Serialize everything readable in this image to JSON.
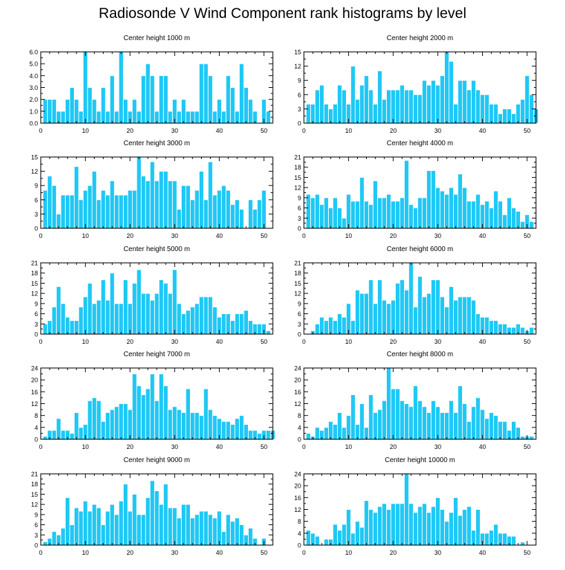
{
  "title": "Radiosonde V Wind Component rank histograms by level",
  "colors": {
    "bar": "#1ec8f5",
    "bar_edge": "#ffffff",
    "axis": "#000000"
  },
  "chart_data": [
    {
      "type": "bar",
      "title": "Center height 1000 m",
      "xlim": [
        0,
        52
      ],
      "ylim": [
        0,
        6
      ],
      "xticks": [
        0,
        10,
        20,
        30,
        40,
        50
      ],
      "yticks": [
        "0.0",
        "1.0",
        "2.0",
        "3.0",
        "4.0",
        "5.0",
        "6.0"
      ],
      "values": [
        2,
        2,
        2,
        1,
        1,
        2,
        3,
        2,
        1,
        6,
        3,
        2,
        1,
        3,
        1,
        4,
        1,
        6,
        2,
        1,
        2,
        1,
        4,
        5,
        4,
        1,
        4,
        4,
        1,
        2,
        1,
        2,
        1,
        1,
        1,
        5,
        5,
        4,
        1,
        2,
        1,
        4,
        3,
        1,
        5,
        3,
        2,
        1,
        0,
        2,
        1
      ]
    },
    {
      "type": "bar",
      "title": "Center height 2000 m",
      "xlim": [
        0,
        52
      ],
      "ylim": [
        0,
        15
      ],
      "xticks": [
        0,
        10,
        20,
        30,
        40,
        50
      ],
      "yticks": [
        "0",
        "3",
        "6",
        "9",
        "12",
        "15"
      ],
      "values": [
        4,
        4,
        7,
        8,
        4,
        3,
        4,
        8,
        7,
        4,
        12,
        5,
        8,
        10,
        7,
        4,
        11,
        5,
        7,
        7,
        7,
        8,
        7,
        7,
        6,
        6,
        9,
        8,
        9,
        8,
        10,
        15,
        13,
        4,
        9,
        9,
        7,
        9,
        7,
        6,
        6,
        4,
        4,
        2,
        3,
        3,
        2,
        4,
        5,
        10,
        6,
        3
      ]
    },
    {
      "type": "bar",
      "title": "Center height 3000 m",
      "xlim": [
        0,
        52
      ],
      "ylim": [
        0,
        15
      ],
      "xticks": [
        0,
        10,
        20,
        30,
        40,
        50
      ],
      "yticks": [
        "0",
        "3",
        "6",
        "9",
        "12",
        "15"
      ],
      "values": [
        8,
        11,
        9,
        3,
        7,
        7,
        7,
        13,
        6,
        8,
        9,
        12,
        6,
        8,
        7,
        10,
        7,
        7,
        7,
        8,
        8,
        15,
        11,
        10,
        14,
        10,
        12,
        12,
        10,
        10,
        4,
        9,
        9,
        6,
        8,
        12,
        6,
        14,
        7,
        8,
        9,
        8,
        5,
        6,
        4,
        0,
        6,
        4,
        6,
        8
      ]
    },
    {
      "type": "bar",
      "title": "Center height 4000 m",
      "xlim": [
        0,
        52
      ],
      "ylim": [
        0,
        21
      ],
      "xticks": [
        0,
        10,
        20,
        30,
        40,
        50
      ],
      "yticks": [
        "0",
        "3",
        "6",
        "9",
        "12",
        "15",
        "18",
        "21"
      ],
      "values": [
        10,
        9,
        10,
        7,
        9,
        6,
        9,
        6,
        3,
        10,
        8,
        8,
        15,
        8,
        7,
        14,
        9,
        9,
        10,
        8,
        8,
        9,
        20,
        7,
        6,
        9,
        9,
        17,
        17,
        12,
        11,
        10,
        12,
        10,
        16,
        12,
        8,
        8,
        10,
        7,
        8,
        6,
        11,
        8,
        4,
        9,
        6,
        5,
        2,
        4,
        2
      ]
    },
    {
      "type": "bar",
      "title": "Center height 5000 m",
      "xlim": [
        0,
        52
      ],
      "ylim": [
        0,
        21
      ],
      "xticks": [
        0,
        10,
        20,
        30,
        40,
        50
      ],
      "yticks": [
        "0",
        "3",
        "6",
        "9",
        "12",
        "15",
        "18",
        "21"
      ],
      "values": [
        3,
        4,
        8,
        14,
        9,
        5,
        4,
        4,
        8,
        11,
        15,
        9,
        10,
        16,
        10,
        18,
        9,
        9,
        16,
        9,
        15,
        19,
        12,
        12,
        10,
        12,
        16,
        15,
        12,
        19,
        9,
        6,
        7,
        8,
        9,
        11,
        11,
        11,
        8,
        5,
        6,
        6,
        4,
        6,
        6,
        7,
        4,
        3,
        3,
        3,
        1
      ]
    },
    {
      "type": "bar",
      "title": "Center height 6000 m",
      "xlim": [
        0,
        52
      ],
      "ylim": [
        0,
        21
      ],
      "xticks": [
        0,
        10,
        20,
        30,
        40,
        50
      ],
      "yticks": [
        "0",
        "3",
        "6",
        "9",
        "12",
        "15",
        "18",
        "21"
      ],
      "values": [
        0,
        1,
        3,
        5,
        4,
        5,
        4,
        6,
        5,
        9,
        4,
        13,
        12,
        12,
        16,
        9,
        16,
        10,
        9,
        10,
        15,
        16,
        13,
        21,
        8,
        17,
        11,
        12,
        16,
        16,
        11,
        8,
        14,
        10,
        11,
        11,
        11,
        10,
        6,
        5,
        5,
        4,
        4,
        3,
        3,
        2,
        2,
        3,
        2,
        1,
        2
      ]
    },
    {
      "type": "bar",
      "title": "Center height 7000 m",
      "xlim": [
        0,
        52
      ],
      "ylim": [
        0,
        24
      ],
      "xticks": [
        0,
        10,
        20,
        30,
        40,
        50
      ],
      "yticks": [
        "0",
        "4",
        "8",
        "12",
        "16",
        "20",
        "24"
      ],
      "values": [
        1,
        3,
        3,
        7,
        3,
        3,
        2,
        9,
        4,
        5,
        13,
        14,
        13,
        6,
        9,
        10,
        11,
        12,
        12,
        10,
        22,
        18,
        15,
        17,
        22,
        13,
        22,
        18,
        10,
        11,
        10,
        9,
        17,
        9,
        9,
        8,
        17,
        10,
        8,
        7,
        6,
        6,
        5,
        7,
        8,
        5,
        3,
        3,
        2,
        3,
        3,
        3
      ]
    },
    {
      "type": "bar",
      "title": "Center height 8000 m",
      "xlim": [
        0,
        52
      ],
      "ylim": [
        0,
        24
      ],
      "xticks": [
        0,
        10,
        20,
        30,
        40,
        50
      ],
      "yticks": [
        "0",
        "4",
        "8",
        "12",
        "16",
        "20",
        "24"
      ],
      "values": [
        2,
        1,
        4,
        3,
        4,
        6,
        5,
        9,
        4,
        8,
        15,
        5,
        12,
        4,
        15,
        9,
        10,
        13,
        24,
        17,
        17,
        13,
        12,
        11,
        18,
        13,
        11,
        9,
        13,
        11,
        9,
        9,
        13,
        9,
        18,
        12,
        6,
        11,
        14,
        10,
        7,
        9,
        8,
        6,
        6,
        3,
        6,
        4,
        1,
        1,
        1
      ]
    },
    {
      "type": "bar",
      "title": "Center height 9000 m",
      "xlim": [
        0,
        52
      ],
      "ylim": [
        0,
        21
      ],
      "xticks": [
        0,
        10,
        20,
        30,
        40,
        50
      ],
      "yticks": [
        "0",
        "3",
        "6",
        "9",
        "12",
        "15",
        "18",
        "21"
      ],
      "values": [
        1,
        2,
        4,
        3,
        5,
        14,
        6,
        11,
        10,
        13,
        10,
        12,
        11,
        6,
        10,
        12,
        9,
        13,
        18,
        10,
        15,
        9,
        9,
        14,
        19,
        16,
        12,
        18,
        11,
        11,
        8,
        12,
        12,
        8,
        9,
        10,
        10,
        9,
        8,
        10,
        4,
        9,
        7,
        8,
        6,
        3,
        5,
        2,
        0,
        2
      ]
    },
    {
      "type": "bar",
      "title": "Center height 10000 m",
      "xlim": [
        0,
        52
      ],
      "ylim": [
        0,
        24
      ],
      "xticks": [
        0,
        10,
        20,
        30,
        40,
        50
      ],
      "yticks": [
        "0",
        "4",
        "8",
        "12",
        "16",
        "20",
        "24"
      ],
      "values": [
        5,
        4,
        3,
        0,
        2,
        2,
        7,
        5,
        7,
        12,
        4,
        8,
        6,
        15,
        12,
        11,
        13,
        14,
        12,
        14,
        14,
        14,
        24,
        14,
        11,
        13,
        14,
        11,
        13,
        16,
        12,
        8,
        11,
        16,
        10,
        12,
        13,
        5,
        12,
        4,
        4,
        5,
        7,
        4,
        4,
        3,
        3,
        0,
        1
      ]
    }
  ]
}
